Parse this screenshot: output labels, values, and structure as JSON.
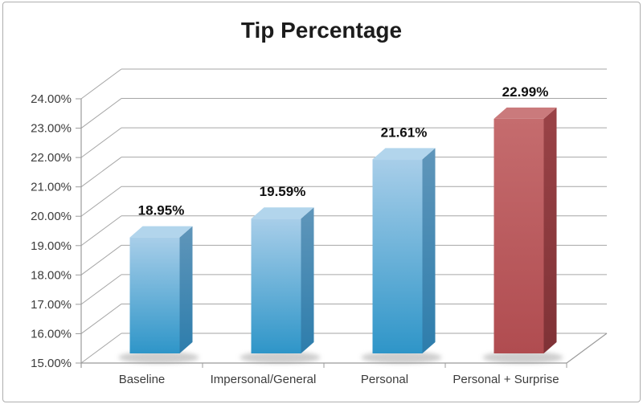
{
  "chart_data": {
    "type": "bar",
    "variant": "3d-column",
    "title": "Tip Percentage",
    "categories": [
      "Baseline",
      "Impersonal/General",
      "Personal",
      "Personal + Surprise"
    ],
    "values": [
      18.95,
      19.59,
      21.61,
      22.99
    ],
    "value_labels": [
      "18.95%",
      "19.59%",
      "21.61%",
      "22.99%"
    ],
    "bar_color_keys": [
      "blue",
      "blue",
      "blue",
      "red"
    ],
    "ylim": [
      15,
      24
    ],
    "ytick_values": [
      15,
      16,
      17,
      18,
      19,
      20,
      21,
      22,
      23,
      24
    ],
    "ytick_labels": [
      "15.00%",
      "16.00%",
      "17.00%",
      "18.00%",
      "19.00%",
      "20.00%",
      "21.00%",
      "22.00%",
      "23.00%",
      "24.00%"
    ],
    "xlabel": "",
    "ylabel": "",
    "grid": true,
    "legend": "none",
    "palette": {
      "blue_front_top": "#a8cee9",
      "blue_front_bottom": "#2e95c8",
      "blue_side_top": "#6096ba",
      "blue_side_bottom": "#2d7dac",
      "blue_top_face": "#b2d5ec",
      "red_front_top": "#c56c6e",
      "red_front_bottom": "#b04c50",
      "red_side_top": "#9a4347",
      "red_side_bottom": "#7f3236",
      "red_top_face": "#ca7a7c",
      "gridline": "#a6a6a6",
      "axis": "#9b9b9b",
      "tick_text": "#3c3c3c",
      "value_text": "#111111",
      "title_text": "#1c1c1c",
      "frame_border": "#aeaeae",
      "shadow": "#9c9c9c",
      "background": "#ffffff"
    }
  }
}
